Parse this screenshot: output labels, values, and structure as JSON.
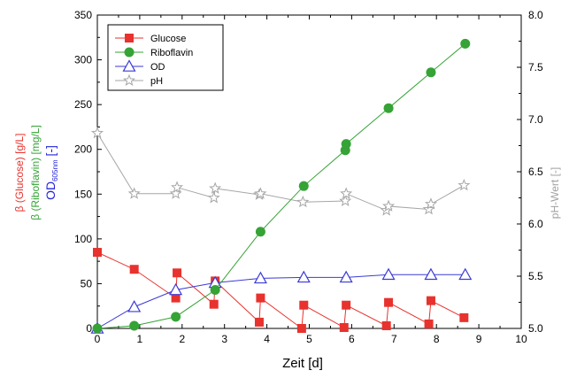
{
  "chart_data": {
    "type": "line",
    "title": "",
    "xlabel": "Zeit [d]",
    "xlim": [
      0,
      10
    ],
    "x_ticks": [
      0,
      1,
      2,
      3,
      4,
      5,
      6,
      7,
      8,
      9,
      10
    ],
    "y_left": {
      "ylim": [
        0,
        350
      ],
      "ticks": [
        0,
        50,
        100,
        150,
        200,
        250,
        300,
        350
      ],
      "label_parts": [
        {
          "text": "β (Glucose) [g/L]",
          "color": "#e8322d"
        },
        {
          "text": "β (Riboflavin) [mg/L]",
          "color": "#35a336"
        },
        {
          "text": "OD",
          "sub": "605nm",
          "suffix": " [-]",
          "color": "#2323d8"
        }
      ]
    },
    "y_right": {
      "label": "pH-Wert [-]",
      "ylim": [
        5.0,
        8.0
      ],
      "ticks": [
        "5.0",
        "5.5",
        "6.0",
        "6.5",
        "7.0",
        "7.5",
        "8.0"
      ],
      "color": "#a0a0a0"
    },
    "grid": false,
    "legend_position": "top-left",
    "series": [
      {
        "name": "Glucose",
        "axis": "left",
        "color": "#e8322d",
        "marker": "square",
        "x": [
          0,
          0.87,
          1.85,
          1.88,
          2.75,
          2.78,
          3.82,
          3.85,
          4.82,
          4.87,
          5.82,
          5.87,
          6.82,
          6.87,
          7.82,
          7.87,
          8.65
        ],
        "y": [
          85,
          66,
          34,
          62,
          27,
          53,
          7,
          34,
          0,
          26,
          1,
          26,
          3,
          29,
          5,
          31,
          12
        ]
      },
      {
        "name": "Riboflavin",
        "axis": "left",
        "color": "#35a336",
        "marker": "circle",
        "x": [
          0,
          0.87,
          1.85,
          2.78,
          3.85,
          4.87,
          5.85,
          5.87,
          6.87,
          7.87,
          8.68
        ],
        "y": [
          0,
          3,
          13,
          43,
          108,
          159,
          199,
          206,
          246,
          286,
          318
        ]
      },
      {
        "name": "OD",
        "axis": "left",
        "color": "#3a3ad6",
        "marker": "triangle",
        "x": [
          0,
          0.87,
          1.85,
          2.78,
          3.85,
          4.87,
          5.87,
          6.87,
          7.87,
          8.68
        ],
        "y": [
          0,
          24,
          43,
          51,
          56,
          57,
          57,
          60,
          60,
          60
        ]
      },
      {
        "name": "pH",
        "axis": "right",
        "color": "#a6a6a6",
        "marker": "star",
        "x": [
          0,
          0.87,
          1.85,
          1.88,
          2.75,
          2.78,
          3.82,
          3.85,
          4.85,
          5.85,
          5.87,
          6.82,
          6.87,
          7.82,
          7.87,
          8.65
        ],
        "y": [
          6.87,
          6.29,
          6.29,
          6.35,
          6.25,
          6.34,
          6.28,
          6.29,
          6.21,
          6.22,
          6.29,
          6.13,
          6.17,
          6.14,
          6.19,
          6.37
        ]
      }
    ]
  }
}
